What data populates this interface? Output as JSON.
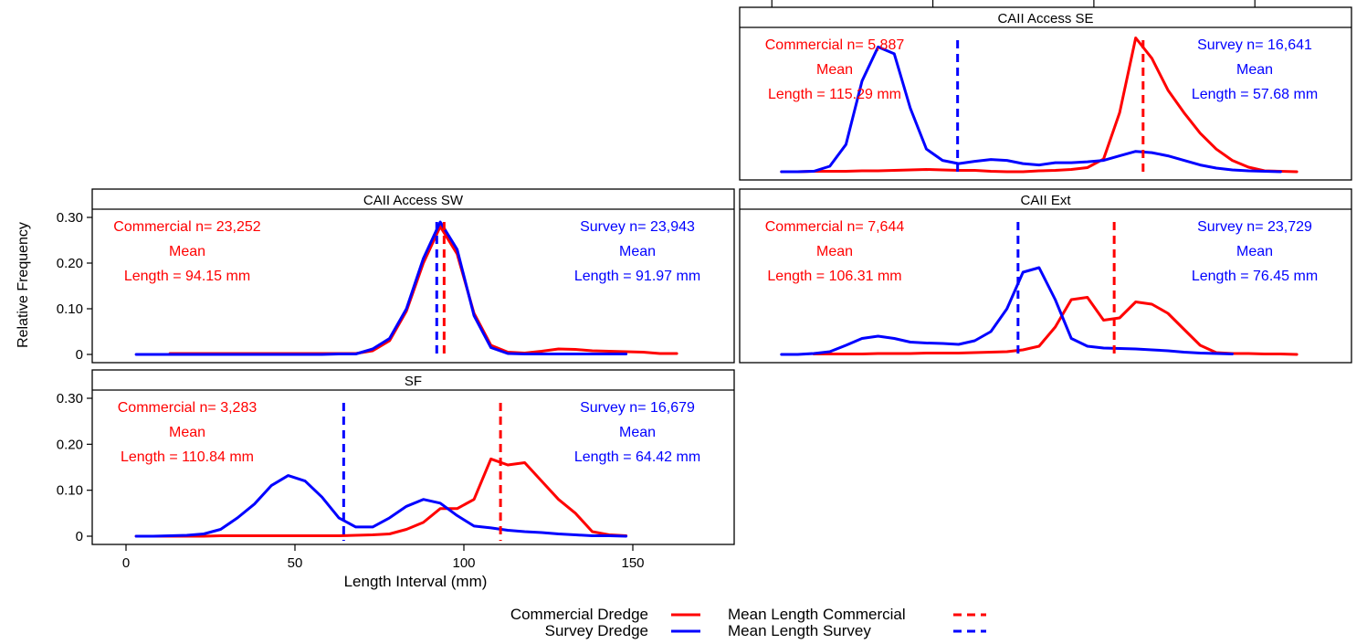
{
  "chart_data": {
    "type": "line",
    "ylabel": "Relative Frequency",
    "xlabel": "Length Interval (mm)",
    "x_ticks": [
      "0",
      "50",
      "100",
      "150"
    ],
    "y_ticks": [
      "0",
      "0.10",
      "0.20",
      "0.30"
    ],
    "xlim": [
      -10,
      180
    ],
    "ylim": [
      0,
      0.3
    ],
    "colors": {
      "commercial": "#ff0000",
      "survey": "#0000ff"
    },
    "legend": [
      {
        "label": "Commercial Dredge",
        "style": "solid",
        "color": "#ff0000"
      },
      {
        "label": "Survey Dredge",
        "style": "solid",
        "color": "#0000ff"
      },
      {
        "label": "Mean Length Commercial",
        "style": "dashed",
        "color": "#ff0000"
      },
      {
        "label": "Mean Length Survey",
        "style": "dashed",
        "color": "#0000ff"
      }
    ],
    "panels": [
      {
        "title": "CAII Access SE",
        "commercial_label": [
          "Commercial n= 5,887",
          "Mean",
          "Length = 115.29 mm"
        ],
        "survey_label": [
          "Survey n= 16,641",
          "Mean",
          "Length = 57.68 mm"
        ],
        "mean_commercial": 115.29,
        "mean_survey": 57.68,
        "series": [
          {
            "name": "Commercial Dredge",
            "x": [
              3,
              8,
              13,
              18,
              23,
              28,
              33,
              38,
              43,
              48,
              53,
              58,
              63,
              68,
              73,
              78,
              83,
              88,
              93,
              98,
              103,
              108,
              113,
              118,
              123,
              128,
              133,
              138,
              143,
              148,
              153,
              158,
              163
            ],
            "y": [
              0,
              0,
              0.001,
              0.001,
              0.001,
              0.002,
              0.002,
              0.003,
              0.004,
              0.005,
              0.004,
              0.003,
              0.003,
              0.001,
              0,
              0,
              0.002,
              0.003,
              0.005,
              0.009,
              0.028,
              0.13,
              0.295,
              0.25,
              0.18,
              0.13,
              0.085,
              0.05,
              0.025,
              0.01,
              0.002,
              0.001,
              0
            ]
          },
          {
            "name": "Survey Dredge",
            "x": [
              3,
              8,
              13,
              18,
              23,
              28,
              33,
              38,
              43,
              48,
              53,
              58,
              63,
              68,
              73,
              78,
              83,
              88,
              93,
              98,
              103,
              108,
              113,
              118,
              123,
              128,
              133,
              138,
              143,
              148,
              153,
              158
            ],
            "y": [
              0,
              0,
              0.001,
              0.012,
              0.06,
              0.2,
              0.275,
              0.26,
              0.14,
              0.05,
              0.025,
              0.018,
              0.023,
              0.027,
              0.025,
              0.018,
              0.015,
              0.02,
              0.02,
              0.022,
              0.025,
              0.035,
              0.045,
              0.042,
              0.035,
              0.025,
              0.015,
              0.008,
              0.004,
              0.002,
              0.001,
              0
            ]
          }
        ]
      },
      {
        "title": "CAII Access SW",
        "commercial_label": [
          "Commercial n= 23,252",
          "Mean",
          "Length = 94.15 mm"
        ],
        "survey_label": [
          "Survey n= 23,943",
          "Mean",
          "Length = 91.97 mm"
        ],
        "mean_commercial": 94.15,
        "mean_survey": 91.97,
        "series": [
          {
            "name": "Commercial Dredge",
            "x": [
              13,
              18,
              23,
              28,
              33,
              38,
              43,
              48,
              53,
              58,
              63,
              68,
              73,
              78,
              83,
              88,
              93,
              98,
              103,
              108,
              113,
              118,
              123,
              128,
              133,
              138,
              143,
              148,
              153,
              158,
              163
            ],
            "y": [
              0.002,
              0.002,
              0.002,
              0.002,
              0.002,
              0.002,
              0.002,
              0.002,
              0.002,
              0.002,
              0.002,
              0.002,
              0.008,
              0.03,
              0.095,
              0.2,
              0.28,
              0.22,
              0.09,
              0.02,
              0.005,
              0.003,
              0.007,
              0.012,
              0.011,
              0.008,
              0.007,
              0.006,
              0.005,
              0.002,
              0.002
            ]
          },
          {
            "name": "Survey Dredge",
            "x": [
              3,
              8,
              13,
              18,
              23,
              28,
              33,
              38,
              43,
              48,
              53,
              58,
              63,
              68,
              73,
              78,
              83,
              88,
              93,
              98,
              103,
              108,
              113,
              118,
              123,
              128,
              133,
              138,
              143,
              148
            ],
            "y": [
              0,
              0,
              0,
              0,
              0,
              0,
              0,
              0,
              0,
              0,
              0,
              0,
              0.001,
              0.001,
              0.012,
              0.035,
              0.1,
              0.21,
              0.29,
              0.23,
              0.085,
              0.015,
              0.002,
              0.001,
              0.001,
              0.001,
              0.001,
              0.001,
              0.001,
              0.001
            ]
          }
        ]
      },
      {
        "title": "CAII Ext",
        "commercial_label": [
          "Commercial n= 7,644",
          "Mean",
          "Length = 106.31 mm"
        ],
        "survey_label": [
          "Survey n= 23,729",
          "Mean",
          "Length = 76.45 mm"
        ],
        "mean_commercial": 106.31,
        "mean_survey": 76.45,
        "series": [
          {
            "name": "Commercial Dredge",
            "x": [
              13,
              18,
              23,
              28,
              33,
              38,
              43,
              48,
              53,
              58,
              63,
              68,
              73,
              78,
              83,
              88,
              93,
              98,
              103,
              108,
              113,
              118,
              123,
              128,
              133,
              138,
              143,
              148,
              153,
              158,
              163
            ],
            "y": [
              0.001,
              0.001,
              0.001,
              0.001,
              0.002,
              0.002,
              0.002,
              0.003,
              0.003,
              0.003,
              0.004,
              0.005,
              0.006,
              0.01,
              0.018,
              0.06,
              0.12,
              0.125,
              0.075,
              0.08,
              0.115,
              0.11,
              0.09,
              0.055,
              0.02,
              0.004,
              0.002,
              0.002,
              0.001,
              0.001,
              0
            ]
          },
          {
            "name": "Survey Dredge",
            "x": [
              3,
              8,
              13,
              18,
              23,
              28,
              33,
              38,
              43,
              48,
              53,
              58,
              63,
              68,
              73,
              78,
              83,
              88,
              93,
              98,
              103,
              108,
              113,
              118,
              123,
              128,
              133,
              138,
              143
            ],
            "y": [
              0,
              0,
              0.002,
              0.006,
              0.02,
              0.035,
              0.04,
              0.035,
              0.027,
              0.025,
              0.024,
              0.022,
              0.03,
              0.05,
              0.1,
              0.18,
              0.19,
              0.12,
              0.035,
              0.018,
              0.014,
              0.013,
              0.012,
              0.01,
              0.008,
              0.005,
              0.003,
              0.002,
              0.001
            ]
          }
        ]
      },
      {
        "title": "SF",
        "commercial_label": [
          "Commercial n= 3,283",
          "Mean",
          "Length = 110.84 mm"
        ],
        "survey_label": [
          "Survey n= 16,679",
          "Mean",
          "Length = 64.42 mm"
        ],
        "mean_commercial": 110.84,
        "mean_survey": 64.42,
        "series": [
          {
            "name": "Commercial Dredge",
            "x": [
              3,
              8,
              13,
              18,
              23,
              28,
              33,
              38,
              43,
              48,
              53,
              58,
              63,
              68,
              73,
              78,
              83,
              88,
              93,
              98,
              103,
              108,
              113,
              118,
              123,
              128,
              133,
              138,
              143,
              148
            ],
            "y": [
              0,
              0,
              0,
              0,
              0,
              0.001,
              0.001,
              0.001,
              0.001,
              0.001,
              0.001,
              0.001,
              0.001,
              0.002,
              0.003,
              0.005,
              0.015,
              0.03,
              0.06,
              0.06,
              0.08,
              0.168,
              0.155,
              0.16,
              0.12,
              0.08,
              0.05,
              0.01,
              0.003,
              0.001
            ]
          },
          {
            "name": "Survey Dredge",
            "x": [
              3,
              8,
              13,
              18,
              23,
              28,
              33,
              38,
              43,
              48,
              53,
              58,
              63,
              68,
              73,
              78,
              83,
              88,
              93,
              98,
              103,
              108,
              113,
              118,
              123,
              128,
              133,
              138,
              143,
              148
            ],
            "y": [
              0,
              0,
              0.001,
              0.002,
              0.005,
              0.015,
              0.04,
              0.07,
              0.11,
              0.132,
              0.12,
              0.085,
              0.04,
              0.02,
              0.02,
              0.04,
              0.065,
              0.08,
              0.072,
              0.045,
              0.022,
              0.018,
              0.013,
              0.01,
              0.008,
              0.005,
              0.003,
              0.001,
              0.001,
              0
            ]
          }
        ]
      }
    ]
  }
}
